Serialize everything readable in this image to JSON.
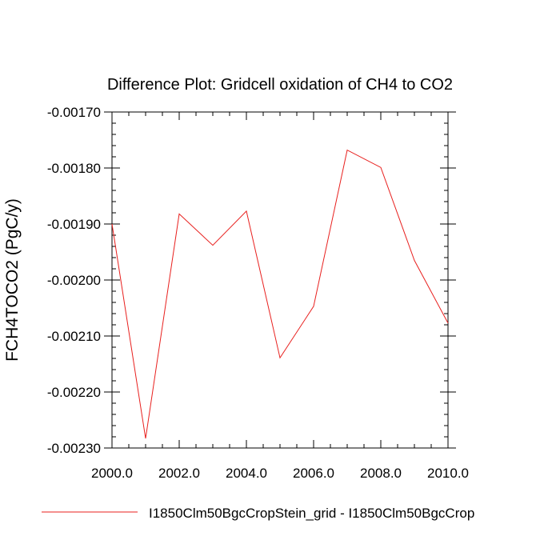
{
  "chart_data": {
    "type": "line",
    "title": "Difference Plot: Gridcell oxidation of CH4 to CO2",
    "xlabel": "",
    "ylabel": "FCH4TOCO2  (PgC/y)",
    "xlim": [
      2000.0,
      2010.0
    ],
    "ylim": [
      -0.0023,
      -0.0017
    ],
    "x_ticks": [
      2000.0,
      2002.0,
      2004.0,
      2006.0,
      2008.0,
      2010.0
    ],
    "x_tick_labels": [
      "2000.0",
      "2002.0",
      "2004.0",
      "2006.0",
      "2008.0",
      "2010.0"
    ],
    "y_ticks": [
      -0.0017,
      -0.0018,
      -0.0019,
      -0.002,
      -0.0021,
      -0.0022,
      -0.0023
    ],
    "y_tick_labels": [
      "-0.00170",
      "-0.00180",
      "-0.00190",
      "-0.00200",
      "-0.00210",
      "-0.00220",
      "-0.00230"
    ],
    "grid": false,
    "legend_position": "bottom",
    "series": [
      {
        "name": "I1850Clm50BgcCropStein_grid - I1850Clm50BgcCrop",
        "color": "#e8201e",
        "x": [
          2000,
          2001,
          2002,
          2003,
          2004,
          2005,
          2006,
          2007,
          2008,
          2009,
          2010
        ],
        "values": [
          -0.0019,
          -0.002283,
          -0.001882,
          -0.001938,
          -0.001877,
          -0.002139,
          -0.002047,
          -0.001768,
          -0.001799,
          -0.001965,
          -0.002077
        ]
      }
    ]
  }
}
